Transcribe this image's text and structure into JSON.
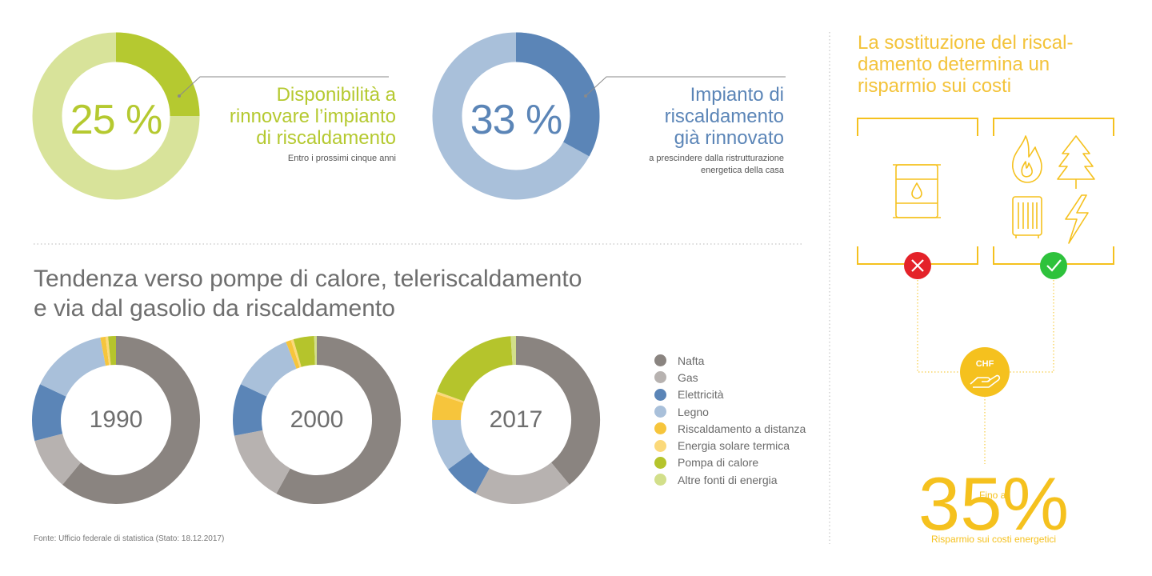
{
  "top_stats": [
    {
      "percent_label": "25 %",
      "value": 25,
      "title_lines": [
        "Disponibilità a",
        "rinnovare l’impianto",
        "di riscaldamento"
      ],
      "sub_lines": [
        "Entro i prossimi cinque anni"
      ],
      "color_highlight": "#b5c930",
      "color_rest": "#d8e39a"
    },
    {
      "percent_label": "33 %",
      "value": 33,
      "title_lines": [
        "Impianto di",
        "riscaldamento",
        "già rinnovato"
      ],
      "sub_lines": [
        "a prescindere dalla ristrutturazione",
        "energetica della casa"
      ],
      "color_highlight": "#5b85b7",
      "color_rest": "#a9c0da"
    }
  ],
  "section_title_lines": [
    "Tendenza verso pompe di calore, teleriscaldamento",
    "e via dal gasolio da riscaldamento"
  ],
  "chart_data": {
    "type": "pie",
    "categories": [
      "Nafta",
      "Gas",
      "Elettricità",
      "Legno",
      "Riscaldamento a distanza",
      "Energia solare termica",
      "Pompa di calore",
      "Altre fonti di energia"
    ],
    "colors": [
      "#8a8480",
      "#b7b2b0",
      "#5b85b7",
      "#a9c0da",
      "#f6c53c",
      "#fbd97a",
      "#b5c42c",
      "#d2df8a"
    ],
    "series": [
      {
        "name": "1990",
        "values": [
          61,
          10,
          11,
          15,
          1,
          0.5,
          1.5,
          0
        ]
      },
      {
        "name": "2000",
        "values": [
          58,
          14,
          10,
          12,
          1,
          0.5,
          4,
          0.5
        ]
      },
      {
        "name": "2017",
        "values": [
          39,
          19,
          7,
          10,
          5,
          0.5,
          18.5,
          1
        ]
      }
    ]
  },
  "source_text": "Fonte: Ufficio federale di statistica (Stato: 18.12.2017)",
  "right_panel": {
    "title_lines": [
      "La sostituzione del riscal-",
      "damento determina un",
      "risparmio sui costi"
    ],
    "chf_label": "CHF",
    "fino_label": "Fino al",
    "savings_value": "35%",
    "savings_caption": "Risparmio sui costi energetici",
    "accent_color": "#f5c11e",
    "bad_color": "#e42229",
    "good_color": "#2ec23c",
    "icons_bad": [
      "oil-barrel-icon"
    ],
    "icons_good": [
      "flame-icon",
      "tree-icon",
      "heat-pump-icon",
      "lightning-icon"
    ]
  }
}
